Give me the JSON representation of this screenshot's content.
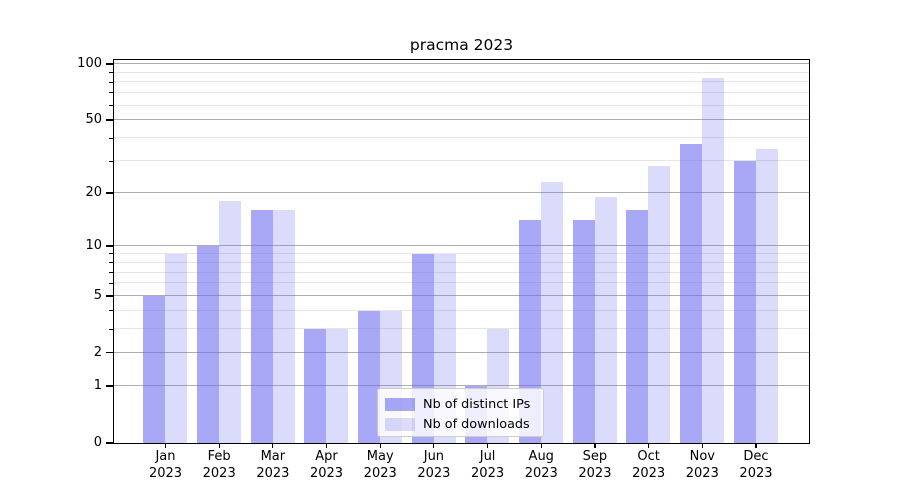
{
  "title": "pracma 2023",
  "chart_data": {
    "type": "bar",
    "title": "pracma 2023",
    "categories": [
      "Jan",
      "Feb",
      "Mar",
      "Apr",
      "May",
      "Jun",
      "Jul",
      "Aug",
      "Sep",
      "Oct",
      "Nov",
      "Dec"
    ],
    "year": "2023",
    "series": [
      {
        "name": "Nb of distinct IPs",
        "color": "rgba(105,105,240,0.58)",
        "values": [
          5,
          10,
          16,
          3,
          4,
          9,
          1,
          14,
          14,
          16,
          37,
          30
        ]
      },
      {
        "name": "Nb of downloads",
        "color": "rgba(105,105,240,0.24)",
        "values": [
          9,
          18,
          16,
          3,
          4,
          9,
          3,
          23,
          19,
          28,
          84,
          35
        ]
      }
    ],
    "y_scale": "log1p",
    "y_ticks_major": [
      0,
      1,
      2,
      5,
      10,
      20,
      50,
      100
    ],
    "y_gridlines_minor": [
      3,
      4,
      6,
      7,
      8,
      9,
      30,
      40,
      60,
      70,
      80,
      90
    ],
    "ylim": [
      0,
      106
    ],
    "xlabel": "",
    "ylabel": "",
    "grid": "both",
    "legend_position": "lower center"
  },
  "colors": {
    "bar_distinct_ips": "rgba(105,105,240,0.58)",
    "bar_downloads": "rgba(105,105,240,0.24)",
    "grid_major": "#aeaeae",
    "grid_minor": "#e5e5e5",
    "axis": "#000000",
    "legend_border": "#cccccc",
    "legend_bg": "rgba(255,255,255,0.8)",
    "text": "#000000"
  }
}
